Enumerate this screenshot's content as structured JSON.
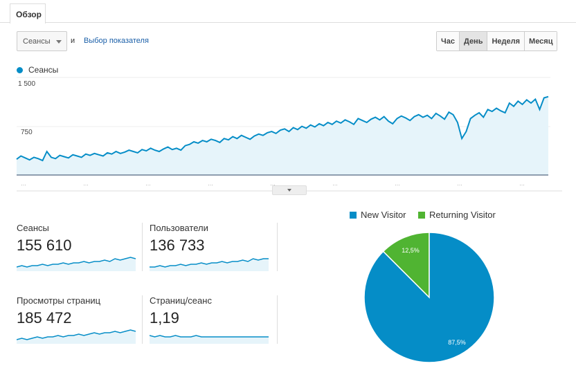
{
  "tab": {
    "label": "Обзор"
  },
  "toolbar": {
    "metric_select": "Сеансы",
    "and_label": "и",
    "choose_metric": "Выбор показателя",
    "periods": [
      {
        "label": "Час",
        "active": false
      },
      {
        "label": "День",
        "active": true
      },
      {
        "label": "Неделя",
        "active": false
      },
      {
        "label": "Месяц",
        "active": false
      }
    ]
  },
  "main_chart": {
    "legend": "Сеансы",
    "color": "#058dc7",
    "y_ticks": [
      "1 500",
      "750"
    ],
    "x_ticks": [
      "…",
      "…",
      "…",
      "…",
      "…",
      "…",
      "…",
      "…",
      "…"
    ],
    "values": [
      330,
      380,
      350,
      320,
      360,
      340,
      310,
      450,
      360,
      340,
      390,
      370,
      350,
      400,
      380,
      360,
      410,
      390,
      420,
      400,
      380,
      430,
      410,
      450,
      420,
      440,
      470,
      450,
      430,
      480,
      460,
      500,
      470,
      450,
      490,
      520,
      480,
      500,
      470,
      540,
      560,
      600,
      580,
      620,
      600,
      640,
      620,
      590,
      650,
      630,
      680,
      650,
      700,
      670,
      640,
      690,
      720,
      700,
      740,
      760,
      730,
      780,
      800,
      760,
      820,
      790,
      840,
      810,
      860,
      830,
      880,
      850,
      900,
      870,
      920,
      890,
      940,
      910,
      870,
      960,
      930,
      900,
      950,
      980,
      940,
      990,
      920,
      880,
      960,
      1000,
      970,
      930,
      990,
      1020,
      980,
      1010,
      960,
      1040,
      1000,
      950,
      1060,
      1020,
      900,
      650,
      760,
      960,
      1010,
      1050,
      980,
      1100,
      1070,
      1120,
      1080,
      1050,
      1200,
      1150,
      1230,
      1180,
      1250,
      1200,
      1260,
      1100,
      1280,
      1300
    ]
  },
  "metrics": [
    {
      "label": "Сеансы",
      "value": "155 610",
      "spark": [
        3,
        4,
        3,
        4,
        4,
        5,
        4,
        5,
        5,
        6,
        5,
        6,
        6,
        7,
        6,
        7,
        7,
        8,
        7,
        9,
        8,
        9,
        10,
        9
      ]
    },
    {
      "label": "Пользователи",
      "value": "136 733",
      "spark": [
        3,
        3,
        4,
        3,
        4,
        4,
        5,
        4,
        5,
        5,
        6,
        5,
        6,
        6,
        7,
        6,
        7,
        7,
        8,
        7,
        9,
        8,
        9,
        9
      ]
    },
    {
      "label": "Просмотры страниц",
      "value": "185 472",
      "spark": [
        3,
        4,
        3,
        4,
        5,
        4,
        5,
        5,
        6,
        5,
        6,
        6,
        7,
        6,
        7,
        8,
        7,
        8,
        8,
        9,
        8,
        9,
        10,
        9
      ]
    },
    {
      "label": "Страниц/сеанс",
      "value": "1,19",
      "spark": [
        6,
        5,
        6,
        5,
        5,
        6,
        5,
        5,
        5,
        6,
        5,
        5,
        5,
        5,
        5,
        5,
        5,
        5,
        5,
        5,
        5,
        5,
        5,
        5
      ]
    }
  ],
  "pie": {
    "slices": [
      {
        "name": "New Visitor",
        "value": 87.5,
        "label": "87,5%",
        "color": "#058dc7"
      },
      {
        "name": "Returning Visitor",
        "value": 12.5,
        "label": "12,5%",
        "color": "#50b432"
      }
    ]
  }
}
